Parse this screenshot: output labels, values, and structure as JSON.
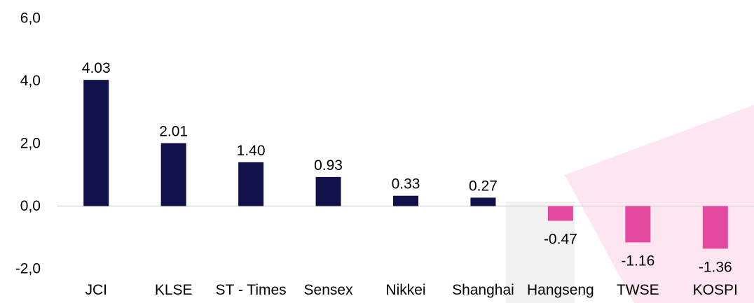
{
  "chart_data": {
    "type": "bar",
    "categories": [
      "JCI",
      "KLSE",
      "ST - Times",
      "Sensex",
      "Nikkei",
      "Shanghai",
      "Hangseng",
      "TWSE",
      "KOSPI"
    ],
    "values": [
      4.03,
      2.01,
      1.4,
      0.93,
      0.33,
      0.27,
      -0.47,
      -1.16,
      -1.36
    ],
    "value_labels": [
      "4.03",
      "2.01",
      "1.40",
      "0.93",
      "0.33",
      "0.27",
      "-0.47",
      "-1.16",
      "-1.36"
    ],
    "yticks": [
      6.0,
      4.0,
      2.0,
      0.0,
      -2.0
    ],
    "ytick_labels": [
      "6,0",
      "4,0",
      "2,0",
      "0,0",
      "-2,0"
    ],
    "ylim": [
      -2.0,
      6.0
    ],
    "grid": false,
    "legend": "none",
    "title": "",
    "xlabel": "",
    "ylabel": "",
    "colors": {
      "positive": "#12124a",
      "negative": "#e4489f",
      "axis": "#d9d9d9",
      "watermark_pink": "#fde6ef",
      "watermark_gray": "#f2f2f2"
    }
  }
}
